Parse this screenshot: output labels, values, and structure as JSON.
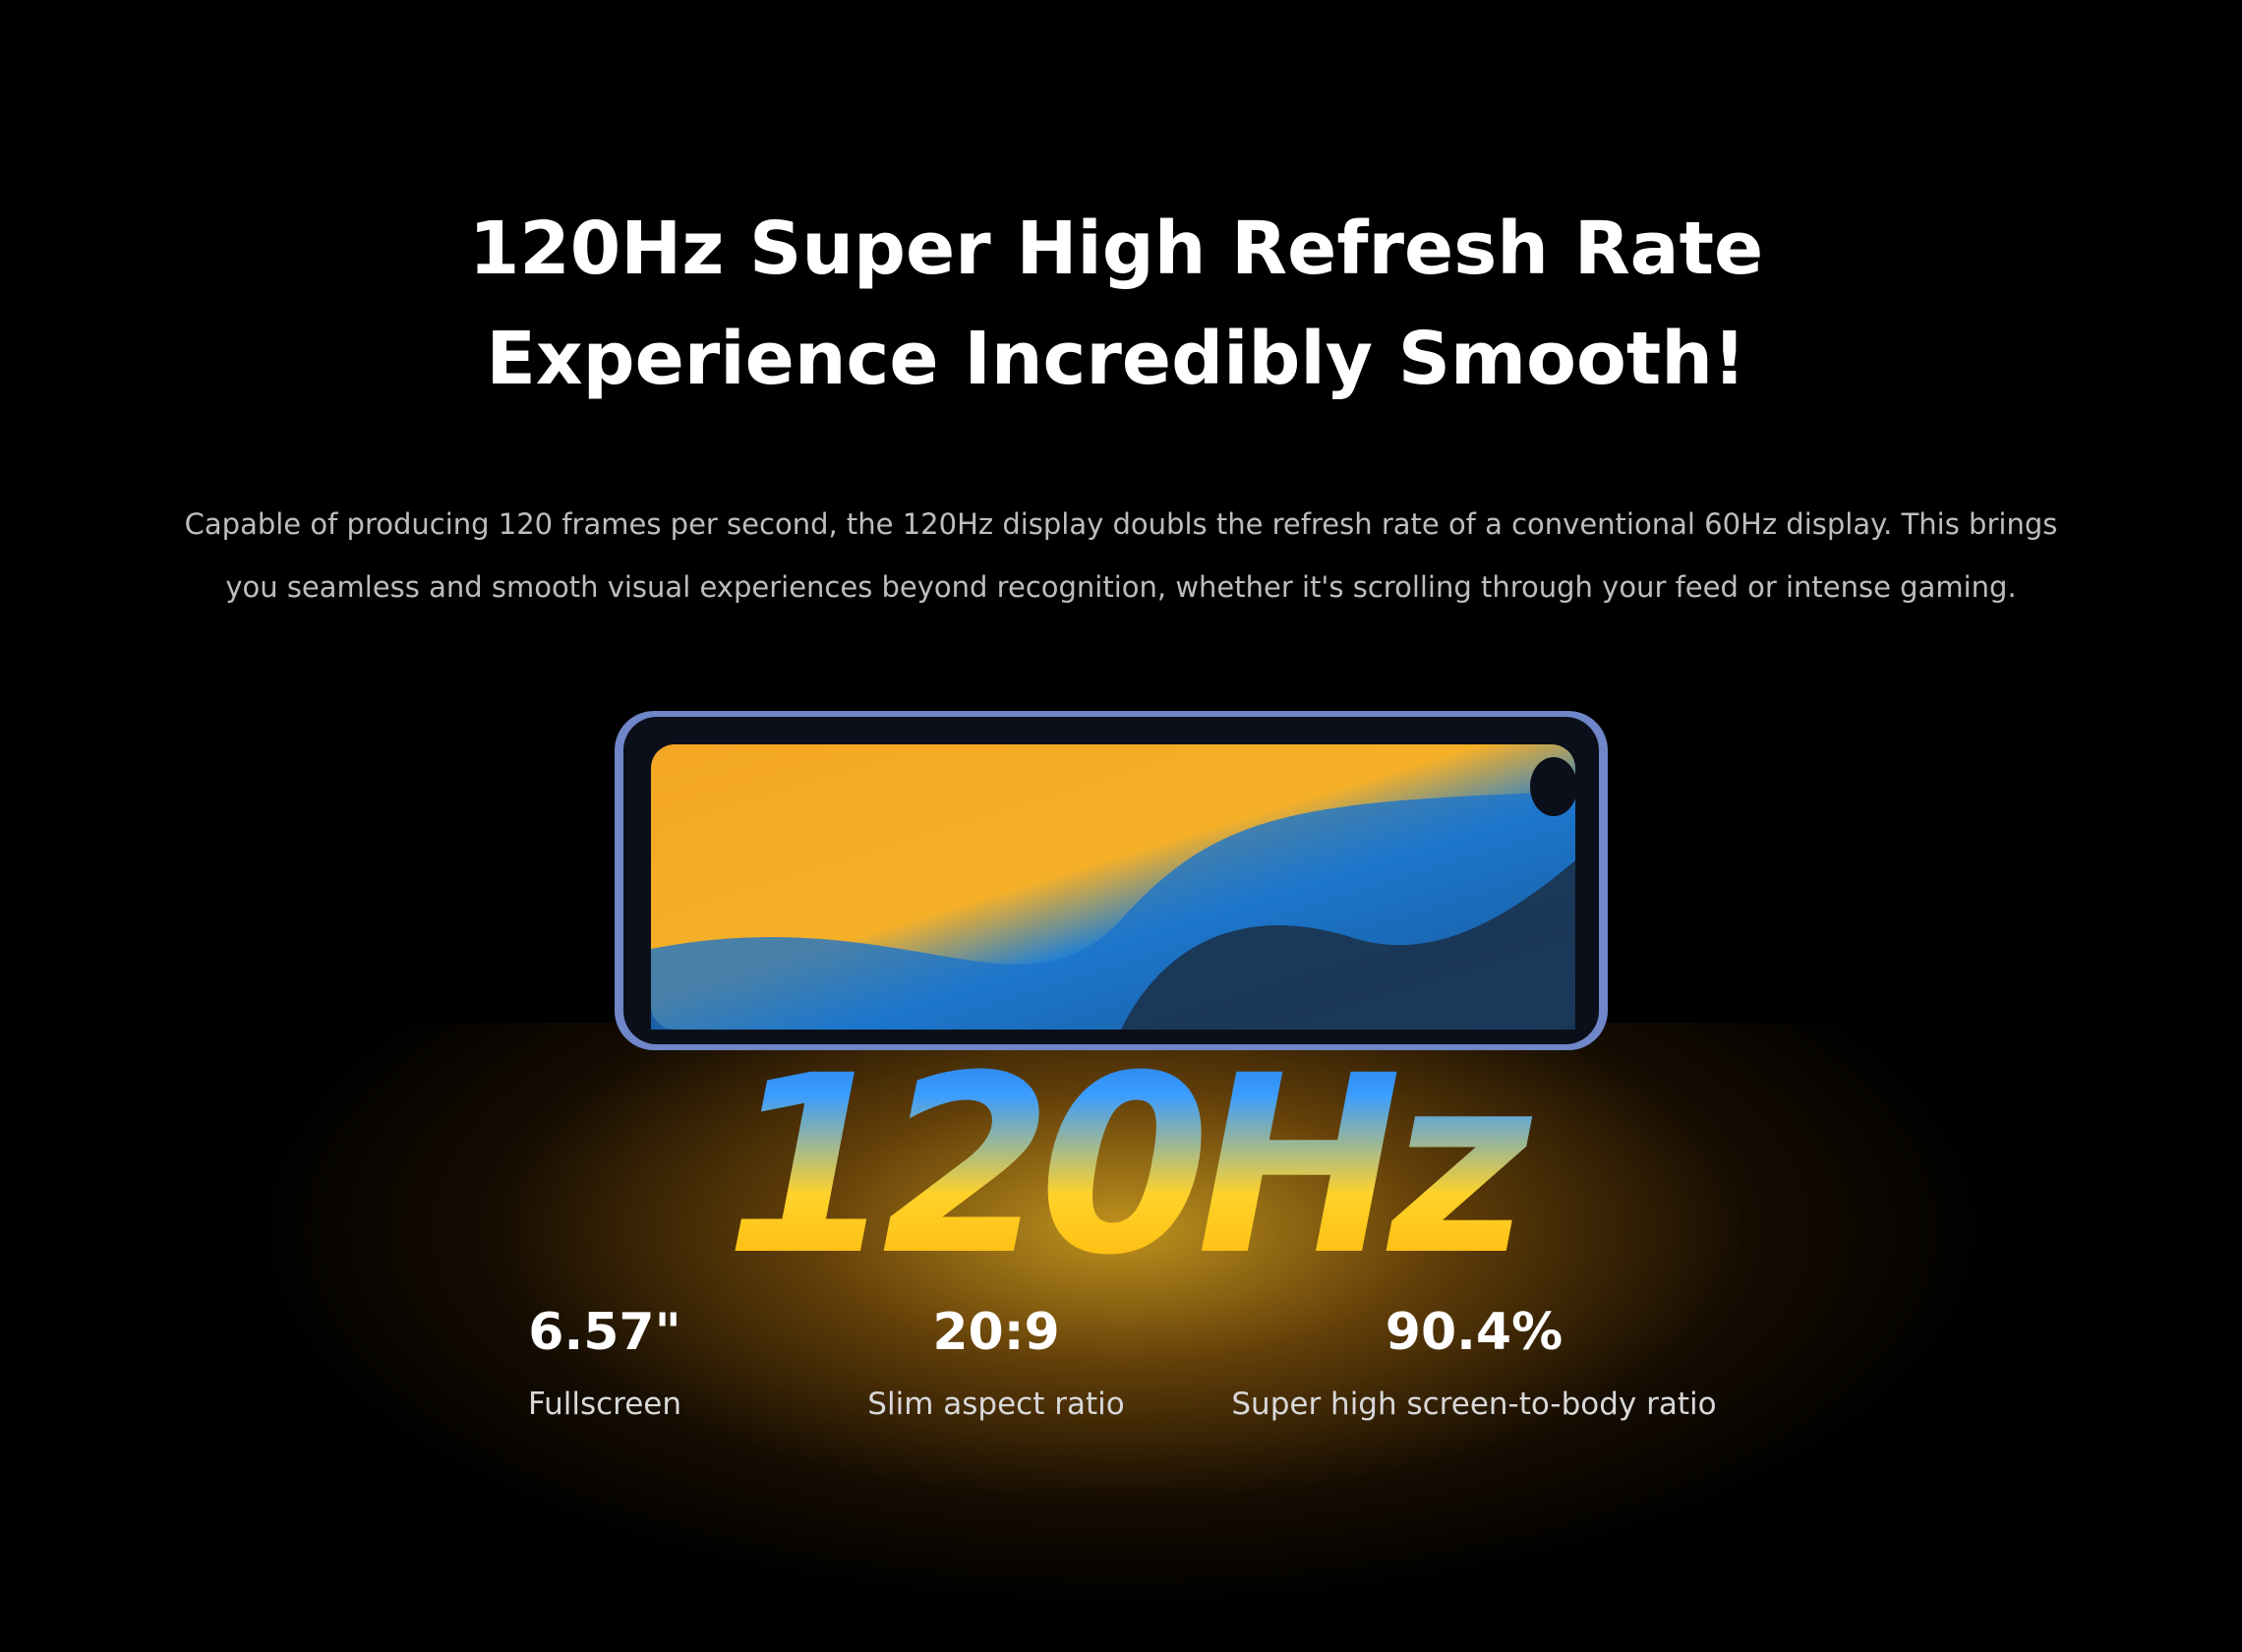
{
  "header": {
    "title_lines": [
      "120Hz Super High Refresh Rate",
      "Experience Incredibly Smooth!"
    ],
    "description_lines": [
      "Capable of producing 120 frames per second, the 120Hz display doubls the refresh rate of a conventional 60Hz display. This brings",
      "you seamless and smooth visual experiences beyond recognition, whether it's scrolling through your feed or intense gaming."
    ]
  },
  "hero_text": "120Hz",
  "stats": [
    {
      "value": "6.57\"",
      "label": "Fullscreen"
    },
    {
      "value": "20:9",
      "label": "Slim aspect ratio"
    },
    {
      "value": "90.4%",
      "label": "Super high screen-to-body ratio"
    }
  ]
}
